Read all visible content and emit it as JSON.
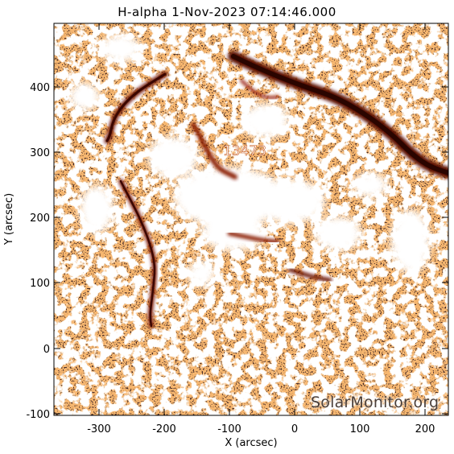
{
  "title": "H-alpha   1-Nov-2023 07:14:46.000",
  "xlabel": "X (arcsec)",
  "ylabel": "Y (arcsec)",
  "x_ticks": [
    "-300",
    "-200",
    "-100",
    "0",
    "100",
    "200"
  ],
  "y_ticks": [
    "400",
    "300",
    "200",
    "100",
    "0",
    "-100"
  ],
  "region_label": "13473",
  "watermark": "SolarMonitor.org",
  "colors": {
    "background": "#ffffff",
    "map_low": "#ffffff",
    "map_mid": "#ef7a2a",
    "map_high": "#6a0f02"
  }
}
